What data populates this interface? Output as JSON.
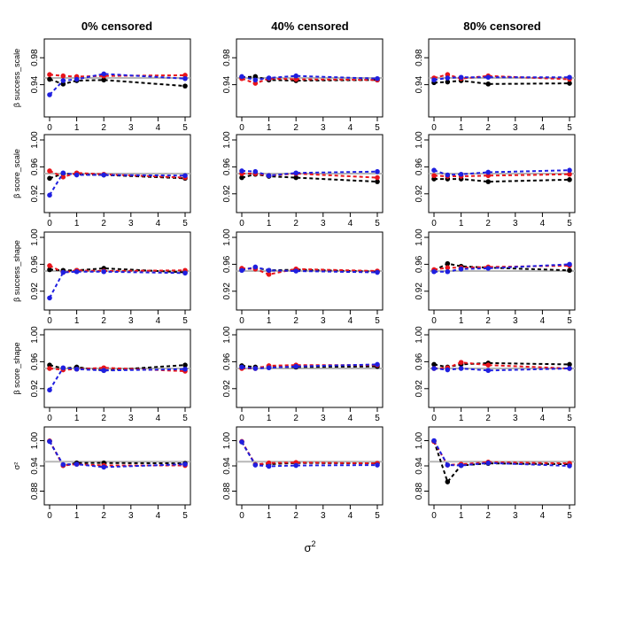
{
  "figure": {
    "columns": [
      "0% censored",
      "40% censored",
      "80% censored"
    ],
    "xlabel": "σ",
    "xlabel_sup": "2"
  },
  "style": {
    "series_colors": {
      "black": "#000000",
      "red": "#e8141b",
      "blue": "#1f1fe0"
    },
    "reference_color": "#b7b7b7"
  },
  "chart_data": [
    {
      "type": "line",
      "row": 0,
      "col": 0,
      "column_title": "0% censored",
      "ylabel": "β success_scale",
      "ylabel_sub": "success_scale",
      "x": [
        0,
        0.5,
        1,
        2,
        5
      ],
      "xlim": [
        0,
        5
      ],
      "xticks": [
        0,
        1,
        2,
        3,
        4,
        5
      ],
      "ylim": [
        0.9,
        1.0
      ],
      "yticks": [
        0.94,
        0.98
      ],
      "reference": 0.95,
      "series": [
        {
          "name": "black",
          "values": [
            0.948,
            0.941,
            0.946,
            0.947,
            0.938
          ]
        },
        {
          "name": "red",
          "values": [
            0.955,
            0.953,
            0.952,
            0.953,
            0.954
          ]
        },
        {
          "name": "blue",
          "values": [
            0.925,
            0.946,
            0.948,
            0.956,
            0.949
          ]
        }
      ]
    },
    {
      "type": "line",
      "row": 0,
      "col": 1,
      "column_title": "40% censored",
      "ylabel": "",
      "x": [
        0,
        0.5,
        1,
        2,
        5
      ],
      "xlim": [
        0,
        5
      ],
      "xticks": [
        0,
        1,
        2,
        3,
        4,
        5
      ],
      "ylim": [
        0.9,
        1.0
      ],
      "yticks": [
        0.94,
        0.98
      ],
      "reference": 0.95,
      "series": [
        {
          "name": "black",
          "values": [
            0.951,
            0.952,
            0.947,
            0.946,
            0.947
          ]
        },
        {
          "name": "red",
          "values": [
            0.949,
            0.942,
            0.949,
            0.948,
            0.947
          ]
        },
        {
          "name": "blue",
          "values": [
            0.952,
            0.947,
            0.95,
            0.953,
            0.949
          ]
        }
      ]
    },
    {
      "type": "line",
      "row": 0,
      "col": 2,
      "column_title": "80% censored",
      "ylabel": "",
      "x": [
        0,
        0.5,
        1,
        2,
        5
      ],
      "xlim": [
        0,
        5
      ],
      "xticks": [
        0,
        1,
        2,
        3,
        4,
        5
      ],
      "ylim": [
        0.9,
        1.0
      ],
      "yticks": [
        0.94,
        0.98
      ],
      "reference": 0.95,
      "series": [
        {
          "name": "black",
          "values": [
            0.943,
            0.944,
            0.946,
            0.941,
            0.942
          ]
        },
        {
          "name": "red",
          "values": [
            0.95,
            0.955,
            0.949,
            0.953,
            0.948
          ]
        },
        {
          "name": "blue",
          "values": [
            0.947,
            0.95,
            0.951,
            0.951,
            0.951
          ]
        }
      ]
    },
    {
      "type": "line",
      "row": 1,
      "col": 0,
      "ylabel": "β score_scale",
      "x": [
        0,
        0.5,
        1,
        2,
        5
      ],
      "xlim": [
        0,
        5
      ],
      "xticks": [
        0,
        1,
        2,
        3,
        4,
        5
      ],
      "ylim": [
        0.9,
        1.0
      ],
      "yticks": [
        0.92,
        0.96,
        1.0
      ],
      "reference": 0.95,
      "series": [
        {
          "name": "black",
          "values": [
            0.943,
            0.95,
            0.949,
            0.948,
            0.943
          ]
        },
        {
          "name": "red",
          "values": [
            0.954,
            0.945,
            0.951,
            0.949,
            0.944
          ]
        },
        {
          "name": "blue",
          "values": [
            0.918,
            0.951,
            0.948,
            0.948,
            0.947
          ]
        }
      ]
    },
    {
      "type": "line",
      "row": 1,
      "col": 1,
      "ylabel": "",
      "x": [
        0,
        0.5,
        1,
        2,
        5
      ],
      "xlim": [
        0,
        5
      ],
      "xticks": [
        0,
        1,
        2,
        3,
        4,
        5
      ],
      "ylim": [
        0.9,
        1.0
      ],
      "yticks": [
        0.92,
        0.96,
        1.0
      ],
      "reference": 0.95,
      "series": [
        {
          "name": "black",
          "values": [
            0.944,
            0.949,
            0.946,
            0.944,
            0.938
          ]
        },
        {
          "name": "red",
          "values": [
            0.95,
            0.95,
            0.947,
            0.95,
            0.944
          ]
        },
        {
          "name": "blue",
          "values": [
            0.954,
            0.953,
            0.947,
            0.951,
            0.953
          ]
        }
      ]
    },
    {
      "type": "line",
      "row": 1,
      "col": 2,
      "ylabel": "",
      "x": [
        0,
        0.5,
        1,
        2,
        5
      ],
      "xlim": [
        0,
        5
      ],
      "xticks": [
        0,
        1,
        2,
        3,
        4,
        5
      ],
      "ylim": [
        0.9,
        1.0
      ],
      "yticks": [
        0.92,
        0.96,
        1.0
      ],
      "reference": 0.95,
      "series": [
        {
          "name": "black",
          "values": [
            0.942,
            0.942,
            0.942,
            0.938,
            0.941
          ]
        },
        {
          "name": "red",
          "values": [
            0.947,
            0.946,
            0.946,
            0.947,
            0.949
          ]
        },
        {
          "name": "blue",
          "values": [
            0.955,
            0.948,
            0.949,
            0.952,
            0.955
          ]
        }
      ]
    },
    {
      "type": "line",
      "row": 2,
      "col": 0,
      "ylabel": "β success_shape",
      "x": [
        0,
        0.5,
        1,
        2,
        5
      ],
      "xlim": [
        0,
        5
      ],
      "xticks": [
        0,
        1,
        2,
        3,
        4,
        5
      ],
      "ylim": [
        0.9,
        1.0
      ],
      "yticks": [
        0.92,
        0.96,
        1.0
      ],
      "reference": 0.95,
      "series": [
        {
          "name": "black",
          "values": [
            0.952,
            0.951,
            0.951,
            0.954,
            0.948
          ]
        },
        {
          "name": "red",
          "values": [
            0.958,
            0.948,
            0.951,
            0.95,
            0.951
          ]
        },
        {
          "name": "blue",
          "values": [
            0.91,
            0.948,
            0.949,
            0.949,
            0.947
          ]
        }
      ]
    },
    {
      "type": "line",
      "row": 2,
      "col": 1,
      "ylabel": "",
      "x": [
        0,
        0.5,
        1,
        2,
        5
      ],
      "xlim": [
        0,
        5
      ],
      "xticks": [
        0,
        1,
        2,
        3,
        4,
        5
      ],
      "ylim": [
        0.9,
        1.0
      ],
      "yticks": [
        0.92,
        0.96,
        1.0
      ],
      "reference": 0.95,
      "series": [
        {
          "name": "black",
          "values": [
            0.952,
            0.955,
            0.951,
            0.952,
            0.949
          ]
        },
        {
          "name": "red",
          "values": [
            0.954,
            0.953,
            0.945,
            0.953,
            0.95
          ]
        },
        {
          "name": "blue",
          "values": [
            0.951,
            0.956,
            0.951,
            0.95,
            0.948
          ]
        }
      ]
    },
    {
      "type": "line",
      "row": 2,
      "col": 2,
      "ylabel": "",
      "x": [
        0,
        0.5,
        1,
        2,
        5
      ],
      "xlim": [
        0,
        5
      ],
      "xticks": [
        0,
        1,
        2,
        3,
        4,
        5
      ],
      "ylim": [
        0.9,
        1.0
      ],
      "yticks": [
        0.92,
        0.96,
        1.0
      ],
      "reference": 0.95,
      "series": [
        {
          "name": "black",
          "values": [
            0.951,
            0.961,
            0.957,
            0.955,
            0.951
          ]
        },
        {
          "name": "red",
          "values": [
            0.952,
            0.955,
            0.955,
            0.956,
            0.958
          ]
        },
        {
          "name": "blue",
          "values": [
            0.949,
            0.949,
            0.953,
            0.954,
            0.96
          ]
        }
      ]
    },
    {
      "type": "line",
      "row": 3,
      "col": 0,
      "ylabel": "β score_shape",
      "x": [
        0,
        0.5,
        1,
        2,
        5
      ],
      "xlim": [
        0,
        5
      ],
      "xticks": [
        0,
        1,
        2,
        3,
        4,
        5
      ],
      "ylim": [
        0.9,
        1.0
      ],
      "yticks": [
        0.92,
        0.96,
        1.0
      ],
      "reference": 0.95,
      "series": [
        {
          "name": "black",
          "values": [
            0.955,
            0.95,
            0.952,
            0.947,
            0.955
          ]
        },
        {
          "name": "red",
          "values": [
            0.95,
            0.948,
            0.949,
            0.951,
            0.946
          ]
        },
        {
          "name": "blue",
          "values": [
            0.918,
            0.951,
            0.949,
            0.947,
            0.949
          ]
        }
      ]
    },
    {
      "type": "line",
      "row": 3,
      "col": 1,
      "ylabel": "",
      "x": [
        0,
        0.5,
        1,
        2,
        5
      ],
      "xlim": [
        0,
        5
      ],
      "xticks": [
        0,
        1,
        2,
        3,
        4,
        5
      ],
      "ylim": [
        0.9,
        1.0
      ],
      "yticks": [
        0.92,
        0.96,
        1.0
      ],
      "reference": 0.95,
      "series": [
        {
          "name": "black",
          "values": [
            0.954,
            0.952,
            0.952,
            0.952,
            0.953
          ]
        },
        {
          "name": "red",
          "values": [
            0.95,
            0.95,
            0.954,
            0.955,
            0.955
          ]
        },
        {
          "name": "blue",
          "values": [
            0.952,
            0.95,
            0.951,
            0.953,
            0.956
          ]
        }
      ]
    },
    {
      "type": "line",
      "row": 3,
      "col": 2,
      "ylabel": "",
      "x": [
        0,
        0.5,
        1,
        2,
        5
      ],
      "xlim": [
        0,
        5
      ],
      "xticks": [
        0,
        1,
        2,
        3,
        4,
        5
      ],
      "ylim": [
        0.9,
        1.0
      ],
      "yticks": [
        0.92,
        0.96,
        1.0
      ],
      "reference": 0.95,
      "series": [
        {
          "name": "black",
          "values": [
            0.956,
            0.952,
            0.956,
            0.958,
            0.956
          ]
        },
        {
          "name": "red",
          "values": [
            0.95,
            0.951,
            0.959,
            0.955,
            0.95
          ]
        },
        {
          "name": "blue",
          "values": [
            0.95,
            0.948,
            0.95,
            0.947,
            0.95
          ]
        }
      ]
    },
    {
      "type": "line",
      "row": 4,
      "col": 0,
      "ylabel": "σ²",
      "x": [
        0,
        0.5,
        1,
        2,
        5
      ],
      "xlim": [
        0,
        5
      ],
      "xticks": [
        0,
        1,
        2,
        3,
        4,
        5
      ],
      "ylim": [
        0.86,
        1.02
      ],
      "yticks": [
        0.88,
        0.94,
        1.0
      ],
      "reference": 0.95,
      "series": [
        {
          "name": "black",
          "values": [
            0.999,
            0.941,
            0.947,
            0.947,
            0.946
          ]
        },
        {
          "name": "red",
          "values": [
            0.999,
            0.941,
            0.944,
            0.941,
            0.941
          ]
        },
        {
          "name": "blue",
          "values": [
            0.998,
            0.943,
            0.944,
            0.937,
            0.944
          ]
        }
      ]
    },
    {
      "type": "line",
      "row": 4,
      "col": 1,
      "ylabel": "",
      "x": [
        0,
        0.5,
        1,
        2,
        5
      ],
      "xlim": [
        0,
        5
      ],
      "xticks": [
        0,
        1,
        2,
        3,
        4,
        5
      ],
      "ylim": [
        0.86,
        1.02
      ],
      "yticks": [
        0.88,
        0.94,
        1.0
      ],
      "reference": 0.95,
      "series": [
        {
          "name": "black",
          "values": [
            0.997,
            0.943,
            0.944,
            0.947,
            0.946
          ]
        },
        {
          "name": "red",
          "values": [
            0.998,
            0.943,
            0.947,
            0.948,
            0.946
          ]
        },
        {
          "name": "blue",
          "values": [
            0.997,
            0.942,
            0.939,
            0.941,
            0.942
          ]
        }
      ]
    },
    {
      "type": "line",
      "row": 4,
      "col": 2,
      "ylabel": "",
      "x": [
        0,
        0.5,
        1,
        2,
        5
      ],
      "xlim": [
        0,
        5
      ],
      "xticks": [
        0,
        1,
        2,
        3,
        4,
        5
      ],
      "ylim": [
        0.86,
        1.02
      ],
      "yticks": [
        0.88,
        0.94,
        1.0
      ],
      "reference": 0.95,
      "series": [
        {
          "name": "black",
          "values": [
            0.999,
            0.902,
            0.941,
            0.946,
            0.944
          ]
        },
        {
          "name": "red",
          "values": [
            0.998,
            0.942,
            0.944,
            0.949,
            0.946
          ]
        },
        {
          "name": "blue",
          "values": [
            1.0,
            0.942,
            0.941,
            0.947,
            0.94
          ]
        }
      ]
    }
  ]
}
